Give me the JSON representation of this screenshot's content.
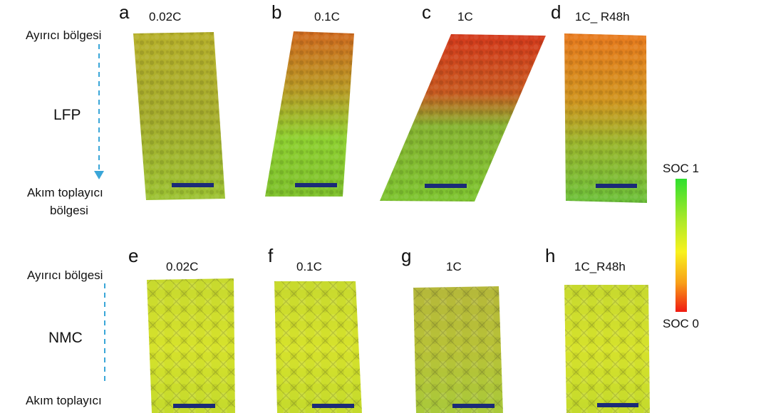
{
  "labels": {
    "a": "a",
    "b": "b",
    "c": "c",
    "d": "d",
    "e": "e",
    "f": "f",
    "g": "g",
    "h": "h"
  },
  "rows": {
    "lfp": {
      "material": "LFP",
      "top_region": "Ayırıcı bölgesi",
      "bottom_region_line1": "Akım toplayıcı",
      "bottom_region_line2": "bölgesi",
      "conditions": [
        "0.02C",
        "0.1C",
        "1C",
        "1C_ R48h"
      ]
    },
    "nmc": {
      "material": "NMC",
      "top_region": "Ayırıcı bölgesi",
      "bottom_region_line1": "Akım toplayıcı",
      "conditions": [
        "0.02C",
        "0.1C",
        "1C",
        "1C_R48h"
      ]
    }
  },
  "colorbar": {
    "top_label": "SOC 1",
    "bottom_label": "SOC 0",
    "colors": [
      "#2fe02f",
      "#f8f21e",
      "#f01a12"
    ]
  },
  "colors": {
    "arrow": "#3aa6d8",
    "scale_bar": "#1b2a78"
  }
}
